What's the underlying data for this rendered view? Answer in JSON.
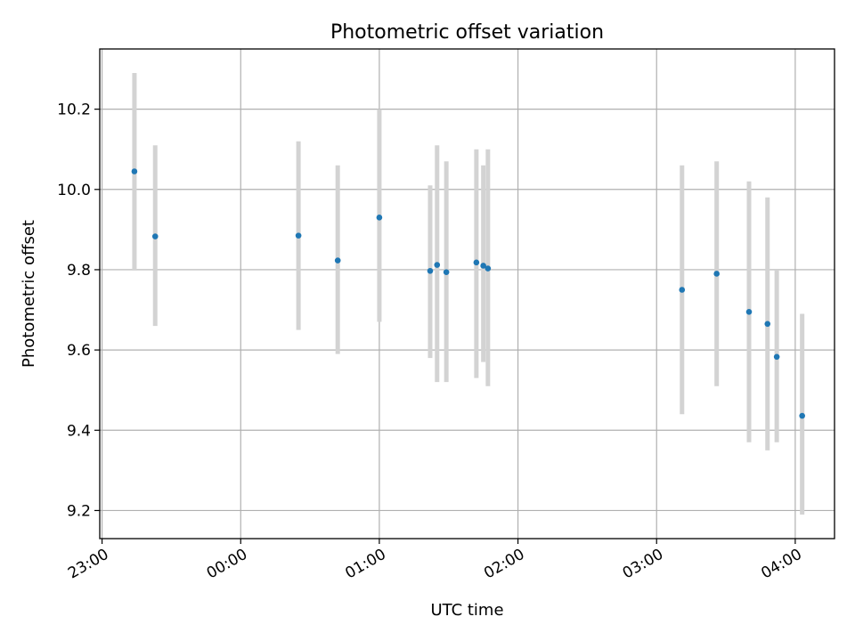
{
  "chart_data": {
    "type": "scatter",
    "title": "Photometric offset variation",
    "xlabel": "UTC time",
    "ylabel": "Photometric offset",
    "xlim": [
      "22:59",
      "04:17"
    ],
    "ylim": [
      9.13,
      10.35
    ],
    "xticks": [
      "23:00",
      "00:00",
      "01:00",
      "02:00",
      "03:00",
      "04:00"
    ],
    "yticks": [
      9.2,
      9.4,
      9.6,
      9.8,
      10.0,
      10.2
    ],
    "grid": true,
    "colors": {
      "points": "#1f77b4",
      "error_bars": "#d3d3d3",
      "grid": "#b0b0b0"
    },
    "points": [
      {
        "time": "23:14",
        "value": 10.045,
        "err_low": 9.8,
        "err_high": 10.29
      },
      {
        "time": "23:23",
        "value": 9.883,
        "err_low": 9.66,
        "err_high": 10.11
      },
      {
        "time": "00:25",
        "value": 9.885,
        "err_low": 9.65,
        "err_high": 10.12
      },
      {
        "time": "00:42",
        "value": 9.823,
        "err_low": 9.59,
        "err_high": 10.06
      },
      {
        "time": "01:00",
        "value": 9.93,
        "err_low": 9.67,
        "err_high": 10.2
      },
      {
        "time": "01:22",
        "value": 9.797,
        "err_low": 9.58,
        "err_high": 10.01
      },
      {
        "time": "01:25",
        "value": 9.812,
        "err_low": 9.52,
        "err_high": 10.11
      },
      {
        "time": "01:29",
        "value": 9.794,
        "err_low": 9.52,
        "err_high": 10.07
      },
      {
        "time": "01:42",
        "value": 9.818,
        "err_low": 9.53,
        "err_high": 10.1
      },
      {
        "time": "01:45",
        "value": 9.81,
        "err_low": 9.57,
        "err_high": 10.06
      },
      {
        "time": "01:47",
        "value": 9.803,
        "err_low": 9.51,
        "err_high": 10.1
      },
      {
        "time": "03:11",
        "value": 9.75,
        "err_low": 9.44,
        "err_high": 10.06
      },
      {
        "time": "03:26",
        "value": 9.79,
        "err_low": 9.51,
        "err_high": 10.07
      },
      {
        "time": "03:40",
        "value": 9.695,
        "err_low": 9.37,
        "err_high": 10.02
      },
      {
        "time": "03:48",
        "value": 9.665,
        "err_low": 9.35,
        "err_high": 9.98
      },
      {
        "time": "03:52",
        "value": 9.583,
        "err_low": 9.37,
        "err_high": 9.8
      },
      {
        "time": "04:03",
        "value": 9.436,
        "err_low": 9.19,
        "err_high": 9.69
      }
    ]
  }
}
